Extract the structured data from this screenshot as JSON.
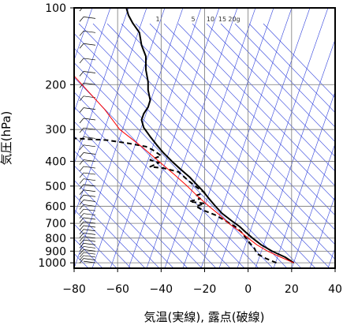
{
  "chart_data": {
    "type": "line",
    "subtitle": "",
    "xlabel": "気温(実線), 露点(破線)",
    "ylabel": "気圧(hPa)",
    "xlim": [
      -80,
      40
    ],
    "ylim": [
      1050,
      100
    ],
    "y_scale": "log",
    "x_ticks": [
      -80,
      -60,
      -40,
      -20,
      0,
      20,
      40
    ],
    "x_tick_labels": [
      "−80",
      "−60",
      "−40",
      "−20",
      "0",
      "20",
      "40"
    ],
    "y_ticks": [
      100,
      200,
      300,
      400,
      500,
      600,
      700,
      800,
      900,
      1000
    ],
    "y_tick_labels": [
      "100",
      "200",
      "300",
      "400",
      "500",
      "600",
      "700",
      "800",
      "900",
      "1000"
    ],
    "mixing_ratio_labels": [
      "1",
      "5",
      "10",
      "15",
      "20g"
    ],
    "grid": true,
    "series": [
      {
        "id": "temperature",
        "style": "solid",
        "color": "#000000",
        "points": [
          [
            21,
            1000
          ],
          [
            17,
            950
          ],
          [
            11,
            900
          ],
          [
            6,
            850
          ],
          [
            2,
            800
          ],
          [
            -1,
            760
          ],
          [
            -4,
            720
          ],
          [
            -8,
            680
          ],
          [
            -12,
            640
          ],
          [
            -15,
            600
          ],
          [
            -18,
            560
          ],
          [
            -21,
            520
          ],
          [
            -24,
            490
          ],
          [
            -27,
            460
          ],
          [
            -31,
            430
          ],
          [
            -35,
            400
          ],
          [
            -39,
            370
          ],
          [
            -42,
            345
          ],
          [
            -45,
            320
          ],
          [
            -48,
            295
          ],
          [
            -49,
            275
          ],
          [
            -48,
            260
          ],
          [
            -46,
            245
          ],
          [
            -45,
            230
          ],
          [
            -46,
            210
          ],
          [
            -46,
            195
          ],
          [
            -47,
            175
          ],
          [
            -47,
            155
          ],
          [
            -49,
            140
          ],
          [
            -50,
            125
          ],
          [
            -53,
            115
          ],
          [
            -55,
            107
          ],
          [
            -56,
            100
          ]
        ]
      },
      {
        "id": "dewpoint",
        "style": "dashed",
        "color": "#000000",
        "points": [
          [
            13,
            1000
          ],
          [
            8,
            960
          ],
          [
            4,
            920
          ],
          [
            3,
            880
          ],
          [
            1,
            840
          ],
          [
            -1,
            800
          ],
          [
            -3,
            760
          ],
          [
            -6,
            720
          ],
          [
            -11,
            680
          ],
          [
            -15,
            650
          ],
          [
            -21,
            620
          ],
          [
            -24,
            600
          ],
          [
            -20,
            585
          ],
          [
            -27,
            575
          ],
          [
            -22,
            560
          ],
          [
            -24,
            545
          ],
          [
            -20,
            530
          ],
          [
            -23,
            510
          ],
          [
            -27,
            480
          ],
          [
            -32,
            440
          ],
          [
            -39,
            425
          ],
          [
            -45,
            420
          ],
          [
            -41,
            405
          ],
          [
            -45,
            395
          ],
          [
            -40,
            380
          ],
          [
            -44,
            360
          ],
          [
            -47,
            350
          ],
          [
            -55,
            340
          ],
          [
            -65,
            330
          ],
          [
            -80,
            325
          ]
        ]
      },
      {
        "id": "parcel",
        "style": "solid",
        "color": "#ff0000",
        "points": [
          [
            21,
            1000
          ],
          [
            15,
            950
          ],
          [
            9,
            900
          ],
          [
            4,
            850
          ],
          [
            0,
            800
          ],
          [
            -4,
            750
          ],
          [
            -9,
            700
          ],
          [
            -13,
            650
          ],
          [
            -18,
            600
          ],
          [
            -23,
            550
          ],
          [
            -28,
            500
          ],
          [
            -34,
            450
          ],
          [
            -41,
            400
          ],
          [
            -49,
            350
          ],
          [
            -59,
            300
          ],
          [
            -66,
            250
          ],
          [
            -73,
            215
          ],
          [
            -80,
            185
          ]
        ]
      },
      {
        "id": "wind",
        "style": "barbs",
        "color": "#000000",
        "points": [
          [
            1000,
            "calm"
          ],
          [
            975,
            "light"
          ],
          [
            950,
            "light"
          ],
          [
            925,
            "light"
          ],
          [
            900,
            "light"
          ],
          [
            875,
            "light"
          ],
          [
            850,
            "light"
          ],
          [
            825,
            "light"
          ],
          [
            800,
            "light"
          ],
          [
            775,
            "light"
          ],
          [
            750,
            "light"
          ],
          [
            725,
            "light"
          ],
          [
            700,
            "light"
          ],
          [
            675,
            "light"
          ],
          [
            650,
            "light"
          ],
          [
            625,
            "light"
          ],
          [
            600,
            "light"
          ],
          [
            575,
            "light"
          ],
          [
            550,
            "light"
          ],
          [
            525,
            "light"
          ],
          [
            500,
            "light"
          ],
          [
            475,
            "light"
          ],
          [
            450,
            "light"
          ],
          [
            425,
            "light"
          ],
          [
            400,
            "light"
          ],
          [
            375,
            "light"
          ],
          [
            350,
            "light"
          ],
          [
            325,
            "light"
          ],
          [
            300,
            "light"
          ],
          [
            275,
            "light"
          ],
          [
            250,
            "light"
          ],
          [
            225,
            "light"
          ],
          [
            200,
            "light"
          ],
          [
            180,
            "light"
          ],
          [
            160,
            "light"
          ],
          [
            140,
            "light"
          ],
          [
            125,
            "light"
          ],
          [
            110,
            "light"
          ],
          [
            100,
            "light"
          ]
        ]
      }
    ]
  }
}
